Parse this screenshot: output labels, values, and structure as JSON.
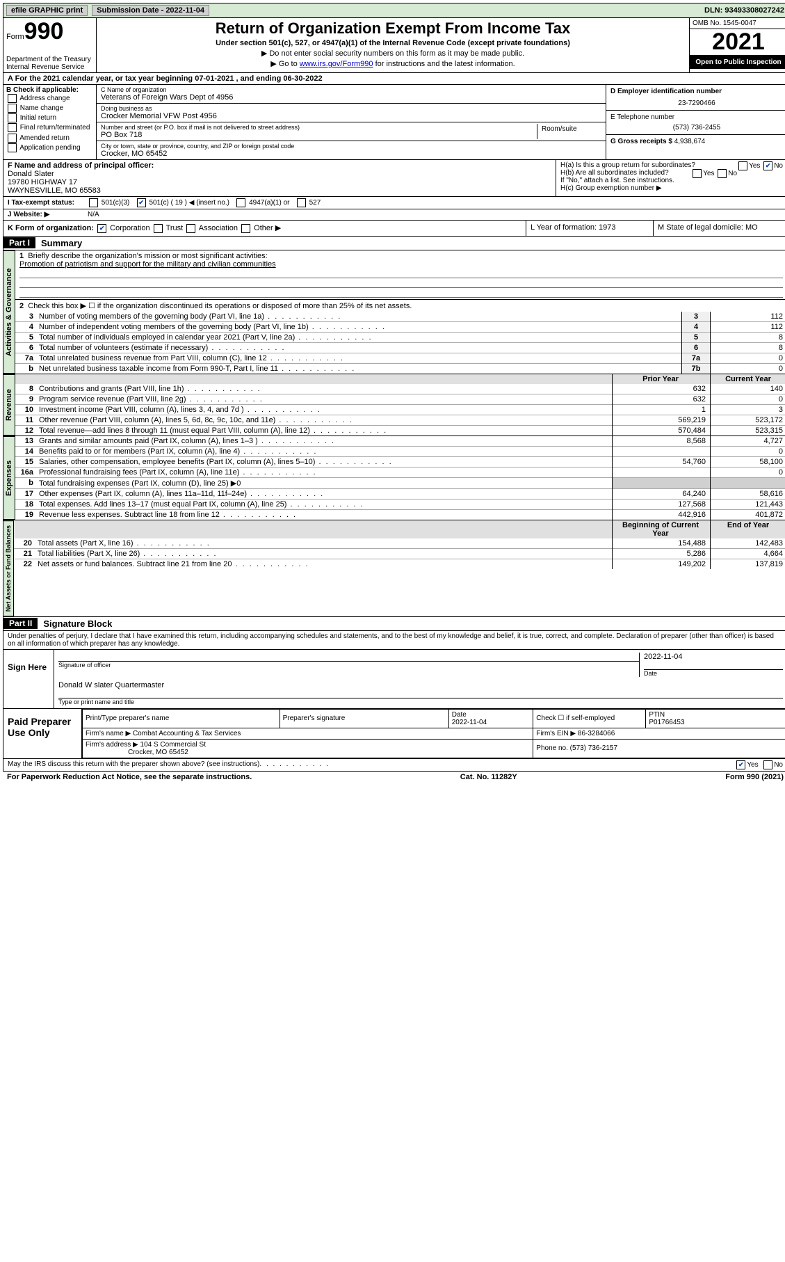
{
  "topbar": {
    "efile": "efile GRAPHIC print",
    "sub_label": "Submission Date - 2022-11-04",
    "dln": "DLN: 93493308027242"
  },
  "header": {
    "form_word": "Form",
    "form_no": "990",
    "dept": "Department of the Treasury",
    "irs": "Internal Revenue Service",
    "title": "Return of Organization Exempt From Income Tax",
    "sub1": "Under section 501(c), 527, or 4947(a)(1) of the Internal Revenue Code (except private foundations)",
    "sub2": "▶ Do not enter social security numbers on this form as it may be made public.",
    "sub3_pre": "▶ Go to ",
    "sub3_link": "www.irs.gov/Form990",
    "sub3_post": " for instructions and the latest information.",
    "omb": "OMB No. 1545-0047",
    "year": "2021",
    "open": "Open to Public Inspection"
  },
  "line_a": "For the 2021 calendar year, or tax year beginning 07-01-2021    , and ending 06-30-2022",
  "check_b": {
    "label": "B Check if applicable:",
    "opts": [
      "Address change",
      "Name change",
      "Initial return",
      "Final return/terminated",
      "Amended return",
      "Application pending"
    ]
  },
  "org": {
    "c_label": "C Name of organization",
    "c_name": "Veterans of Foreign Wars Dept of 4956",
    "dba_label": "Doing business as",
    "dba": "Crocker Memorial VFW Post 4956",
    "addr_label": "Number and street (or P.O. box if mail is not delivered to street address)",
    "addr": "PO Box 718",
    "suite_label": "Room/suite",
    "city_label": "City or town, state or province, country, and ZIP or foreign postal code",
    "city": "Crocker, MO  65452"
  },
  "col_d": {
    "ein_label": "D Employer identification number",
    "ein": "23-7290466",
    "tel_label": "E Telephone number",
    "tel": "(573) 736-2455",
    "gross_label": "G Gross receipts $",
    "gross": "4,938,674"
  },
  "fblock": {
    "label": "F  Name and address of principal officer:",
    "line1": "Donald Slater",
    "line2": "19780 HIGHWAY 17",
    "line3": "WAYNESVILLE, MO  65583"
  },
  "hblock": {
    "ha": "H(a)  Is this a group return for subordinates?",
    "hb": "H(b)  Are all subordinates included?",
    "hb_note": "If \"No,\" attach a list. See instructions.",
    "hc": "H(c)  Group exemption number ▶"
  },
  "row_i": {
    "label": "I  Tax-exempt status:",
    "o1": "501(c)(3)",
    "o2": "501(c) ( 19 ) ◀ (insert no.)",
    "o3": "4947(a)(1) or",
    "o4": "527"
  },
  "row_j": {
    "label": "J  Website: ▶",
    "val": "N/A"
  },
  "row_k": {
    "label": "K Form of organization:",
    "o1": "Corporation",
    "o2": "Trust",
    "o3": "Association",
    "o4": "Other ▶",
    "l": "L Year of formation: 1973",
    "m": "M State of legal domicile: MO"
  },
  "part1": {
    "tag": "Part I",
    "title": "Summary"
  },
  "gov": {
    "tab": "Activities & Governance",
    "l1": "Briefly describe the organization's mission or most significant activities:",
    "mission": "Promotion of patriotism and support for the military and civilian communities",
    "l2": "Check this box ▶ ☐  if the organization discontinued its operations or disposed of more than 25% of its net assets.",
    "rows": [
      {
        "n": "3",
        "d": "Number of voting members of the governing body (Part VI, line 1a)",
        "box": "3",
        "v": "112"
      },
      {
        "n": "4",
        "d": "Number of independent voting members of the governing body (Part VI, line 1b)",
        "box": "4",
        "v": "112"
      },
      {
        "n": "5",
        "d": "Total number of individuals employed in calendar year 2021 (Part V, line 2a)",
        "box": "5",
        "v": "8"
      },
      {
        "n": "6",
        "d": "Total number of volunteers (estimate if necessary)",
        "box": "6",
        "v": "8"
      },
      {
        "n": "7a",
        "d": "Total unrelated business revenue from Part VIII, column (C), line 12",
        "box": "7a",
        "v": "0"
      },
      {
        "n": "b",
        "d": "Net unrelated business taxable income from Form 990-T, Part I, line 11",
        "box": "7b",
        "v": "0"
      }
    ]
  },
  "rev": {
    "tab": "Revenue",
    "hdr_prior": "Prior Year",
    "hdr_curr": "Current Year",
    "rows": [
      {
        "n": "8",
        "d": "Contributions and grants (Part VIII, line 1h)",
        "p": "632",
        "c": "140"
      },
      {
        "n": "9",
        "d": "Program service revenue (Part VIII, line 2g)",
        "p": "632",
        "c": "0"
      },
      {
        "n": "10",
        "d": "Investment income (Part VIII, column (A), lines 3, 4, and 7d )",
        "p": "1",
        "c": "3"
      },
      {
        "n": "11",
        "d": "Other revenue (Part VIII, column (A), lines 5, 6d, 8c, 9c, 10c, and 11e)",
        "p": "569,219",
        "c": "523,172"
      },
      {
        "n": "12",
        "d": "Total revenue—add lines 8 through 11 (must equal Part VIII, column (A), line 12)",
        "p": "570,484",
        "c": "523,315"
      }
    ]
  },
  "exp": {
    "tab": "Expenses",
    "rows": [
      {
        "n": "13",
        "d": "Grants and similar amounts paid (Part IX, column (A), lines 1–3 )",
        "p": "8,568",
        "c": "4,727"
      },
      {
        "n": "14",
        "d": "Benefits paid to or for members (Part IX, column (A), line 4)",
        "p": "",
        "c": "0"
      },
      {
        "n": "15",
        "d": "Salaries, other compensation, employee benefits (Part IX, column (A), lines 5–10)",
        "p": "54,760",
        "c": "58,100"
      },
      {
        "n": "16a",
        "d": "Professional fundraising fees (Part IX, column (A), line 11e)",
        "p": "",
        "c": "0"
      },
      {
        "n": "b",
        "d": "Total fundraising expenses (Part IX, column (D), line 25) ▶0",
        "p": "",
        "c": "",
        "grey": true
      },
      {
        "n": "17",
        "d": "Other expenses (Part IX, column (A), lines 11a–11d, 11f–24e)",
        "p": "64,240",
        "c": "58,616"
      },
      {
        "n": "18",
        "d": "Total expenses. Add lines 13–17 (must equal Part IX, column (A), line 25)",
        "p": "127,568",
        "c": "121,443"
      },
      {
        "n": "19",
        "d": "Revenue less expenses. Subtract line 18 from line 12",
        "p": "442,916",
        "c": "401,872"
      }
    ]
  },
  "net": {
    "tab": "Net Assets or Fund Balances",
    "hdr_beg": "Beginning of Current Year",
    "hdr_end": "End of Year",
    "rows": [
      {
        "n": "20",
        "d": "Total assets (Part X, line 16)",
        "p": "154,488",
        "c": "142,483"
      },
      {
        "n": "21",
        "d": "Total liabilities (Part X, line 26)",
        "p": "5,286",
        "c": "4,664"
      },
      {
        "n": "22",
        "d": "Net assets or fund balances. Subtract line 21 from line 20",
        "p": "149,202",
        "c": "137,819"
      }
    ]
  },
  "part2": {
    "tag": "Part II",
    "title": "Signature Block"
  },
  "penalty": "Under penalties of perjury, I declare that I have examined this return, including accompanying schedules and statements, and to the best of my knowledge and belief, it is true, correct, and complete. Declaration of preparer (other than officer) is based on all information of which preparer has any knowledge.",
  "sign": {
    "left": "Sign Here",
    "sig_of": "Signature of officer",
    "date_lbl": "Date",
    "date": "2022-11-04",
    "name": "Donald W slater Quartermaster",
    "name_lbl": "Type or print name and title"
  },
  "prep": {
    "left": "Paid Preparer Use Only",
    "h1": "Print/Type preparer's name",
    "h2": "Preparer's signature",
    "h3": "Date",
    "date": "2022-11-04",
    "h4": "Check ☐ if self-employed",
    "h5": "PTIN",
    "ptin": "P01766453",
    "firm_lbl": "Firm's name    ▶",
    "firm": "Combat Accounting & Tax Services",
    "ein_lbl": "Firm's EIN ▶",
    "ein": "86-3284066",
    "addr_lbl": "Firm's address ▶",
    "addr1": "104 S Commercial St",
    "addr2": "Crocker, MO  65452",
    "phone_lbl": "Phone no.",
    "phone": "(573) 736-2157"
  },
  "discuss": "May the IRS discuss this return with the preparer shown above? (see instructions)",
  "footer": {
    "pra": "For Paperwork Reduction Act Notice, see the separate instructions.",
    "cat": "Cat. No. 11282Y",
    "form": "Form 990 (2021)"
  },
  "yesno": {
    "yes": "Yes",
    "no": "No"
  }
}
